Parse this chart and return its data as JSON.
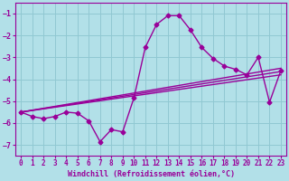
{
  "background_color": "#b2e0e8",
  "grid_color": "#90c8d2",
  "line_color": "#990099",
  "xlabel": "Windchill (Refroidissement éolien,°C)",
  "xlim": [
    -0.5,
    23.5
  ],
  "ylim": [
    -7.5,
    -0.5
  ],
  "yticks": [
    -7,
    -6,
    -5,
    -4,
    -3,
    -2,
    -1
  ],
  "xticks": [
    0,
    1,
    2,
    3,
    4,
    5,
    6,
    7,
    8,
    9,
    10,
    11,
    12,
    13,
    14,
    15,
    16,
    17,
    18,
    19,
    20,
    21,
    22,
    23
  ],
  "series1_x": [
    0,
    1,
    2,
    3,
    4,
    5,
    6,
    7,
    8,
    9,
    10,
    11,
    12,
    13,
    14,
    15,
    16,
    17,
    18,
    19,
    20,
    21,
    22,
    23
  ],
  "series1_y": [
    -5.5,
    -5.7,
    -5.8,
    -5.7,
    -5.5,
    -5.55,
    -5.9,
    -6.85,
    -6.3,
    -6.4,
    -4.85,
    -2.55,
    -1.5,
    -1.1,
    -1.1,
    -1.75,
    -2.55,
    -3.05,
    -3.4,
    -3.55,
    -3.8,
    -3.0,
    -5.05,
    -3.6
  ],
  "line2_x": [
    0,
    23
  ],
  "line2_y": [
    -5.5,
    -3.5
  ],
  "line3_x": [
    0,
    23
  ],
  "line3_y": [
    -5.5,
    -3.65
  ],
  "line4_x": [
    0,
    23
  ],
  "line4_y": [
    -5.5,
    -3.8
  ],
  "marker_size": 2.5,
  "linewidth": 1.0
}
